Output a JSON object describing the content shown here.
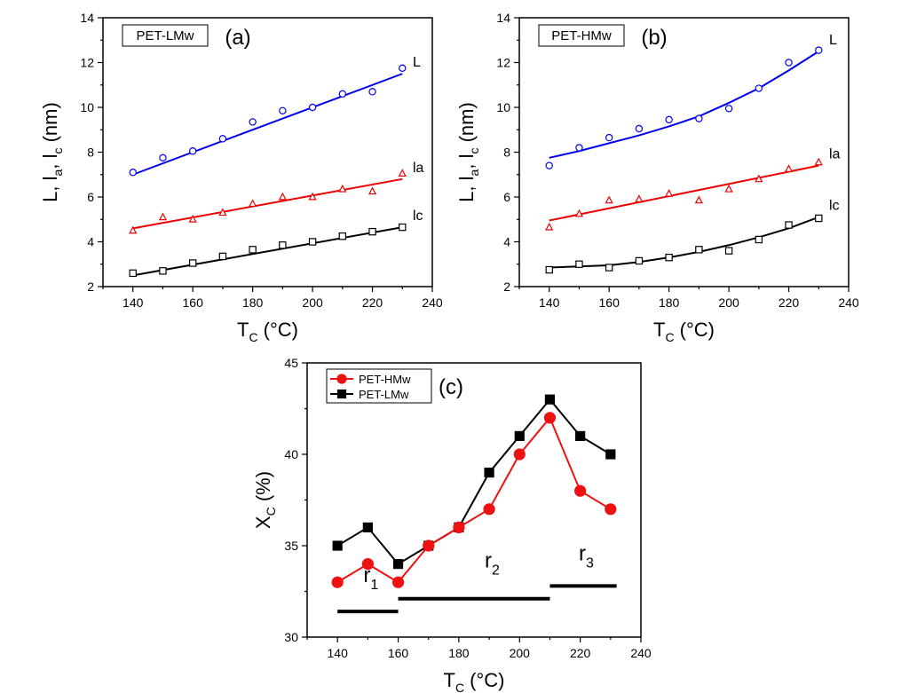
{
  "chart_data": [
    {
      "id": "a",
      "type": "scatter",
      "panel_label": "(a)",
      "sample_tag": "PET-LMw",
      "xlabel_main": "T",
      "xlabel_sub": "C",
      "xlabel_unit": " (°C)",
      "ylabel": "L, l",
      "ylabel_sub1": "a",
      "ylabel_mid": ", l",
      "ylabel_sub2": "c",
      "ylabel_unit": " (nm)",
      "xlim": [
        130,
        240
      ],
      "ylim": [
        2,
        14
      ],
      "xticks": [
        140,
        160,
        180,
        200,
        220,
        240
      ],
      "yticks": [
        2,
        4,
        6,
        8,
        10,
        12,
        14
      ],
      "series": [
        {
          "name": "L",
          "marker": "circle",
          "color": "#0000ee",
          "x": [
            140,
            150,
            160,
            170,
            180,
            190,
            200,
            210,
            220,
            230
          ],
          "y": [
            7.1,
            7.75,
            8.05,
            8.6,
            9.35,
            9.85,
            10.0,
            10.6,
            10.7,
            11.75
          ],
          "fit": [
            [
              140,
              7.0
            ],
            [
              230,
              11.5
            ]
          ]
        },
        {
          "name": "la",
          "marker": "triangle",
          "color": "#ee0000",
          "x": [
            140,
            150,
            160,
            170,
            180,
            190,
            200,
            210,
            220,
            230
          ],
          "y": [
            4.5,
            5.1,
            5.0,
            5.3,
            5.7,
            6.0,
            6.0,
            6.35,
            6.25,
            7.05
          ],
          "fit": [
            [
              140,
              4.6
            ],
            [
              230,
              6.8
            ]
          ]
        },
        {
          "name": "lc",
          "marker": "square",
          "color": "#000000",
          "x": [
            140,
            150,
            160,
            170,
            180,
            190,
            200,
            210,
            220,
            230
          ],
          "y": [
            2.6,
            2.7,
            3.05,
            3.35,
            3.65,
            3.85,
            4.0,
            4.25,
            4.45,
            4.65
          ],
          "fit": [
            [
              140,
              2.5
            ],
            [
              230,
              4.65
            ]
          ]
        }
      ]
    },
    {
      "id": "b",
      "type": "scatter",
      "panel_label": "(b)",
      "sample_tag": "PET-HMw",
      "xlabel_main": "T",
      "xlabel_sub": "C",
      "xlabel_unit": " (°C)",
      "ylabel": "L, l",
      "ylabel_sub1": "a",
      "ylabel_mid": ", l",
      "ylabel_sub2": "c",
      "ylabel_unit": " (nm)",
      "xlim": [
        130,
        240
      ],
      "ylim": [
        2,
        14
      ],
      "xticks": [
        140,
        160,
        180,
        200,
        220,
        240
      ],
      "yticks": [
        2,
        4,
        6,
        8,
        10,
        12,
        14
      ],
      "series": [
        {
          "name": "L",
          "marker": "circle",
          "color": "#0000ee",
          "x": [
            140,
            150,
            160,
            170,
            180,
            190,
            200,
            210,
            220,
            230
          ],
          "y": [
            7.4,
            8.2,
            8.65,
            9.05,
            9.45,
            9.5,
            9.95,
            10.85,
            12.0,
            12.55
          ],
          "fit": [
            [
              140,
              7.75
            ],
            [
              150,
              8.05
            ],
            [
              160,
              8.4
            ],
            [
              170,
              8.75
            ],
            [
              180,
              9.15
            ],
            [
              190,
              9.6
            ],
            [
              200,
              10.2
            ],
            [
              210,
              10.85
            ],
            [
              220,
              11.65
            ],
            [
              230,
              12.5
            ]
          ]
        },
        {
          "name": "la",
          "marker": "triangle",
          "color": "#ee0000",
          "x": [
            140,
            150,
            160,
            170,
            180,
            190,
            200,
            210,
            220,
            230
          ],
          "y": [
            4.65,
            5.25,
            5.85,
            5.9,
            6.15,
            5.85,
            6.35,
            6.8,
            7.25,
            7.55
          ],
          "fit": [
            [
              140,
              4.95
            ],
            [
              230,
              7.4
            ]
          ]
        },
        {
          "name": "lc",
          "marker": "square",
          "color": "#000000",
          "x": [
            140,
            150,
            160,
            170,
            180,
            190,
            200,
            210,
            220,
            230
          ],
          "y": [
            2.75,
            3.0,
            2.85,
            3.15,
            3.3,
            3.65,
            3.6,
            4.1,
            4.75,
            5.05
          ],
          "fit": [
            [
              140,
              2.85
            ],
            [
              150,
              2.9
            ],
            [
              160,
              2.95
            ],
            [
              170,
              3.1
            ],
            [
              180,
              3.3
            ],
            [
              190,
              3.55
            ],
            [
              200,
              3.85
            ],
            [
              210,
              4.2
            ],
            [
              220,
              4.6
            ],
            [
              230,
              5.1
            ]
          ]
        }
      ]
    },
    {
      "id": "c",
      "type": "line",
      "panel_label": "(c)",
      "xlabel_main": "T",
      "xlabel_sub": "C",
      "xlabel_unit": " (°C)",
      "ylabel_main": "X",
      "ylabel_sub": "C",
      "ylabel_unit": " (%)",
      "xlim": [
        130,
        240
      ],
      "ylim": [
        30,
        45
      ],
      "xticks": [
        140,
        160,
        180,
        200,
        220,
        240
      ],
      "yticks": [
        30,
        35,
        40,
        45
      ],
      "legend_position": "top-left",
      "series": [
        {
          "name": "PET-HMw",
          "marker": "circle",
          "color": "#ee1111",
          "x": [
            140,
            150,
            160,
            170,
            180,
            190,
            200,
            210,
            220,
            230
          ],
          "y": [
            33,
            34,
            33,
            35,
            36,
            37,
            40,
            42,
            38,
            37
          ]
        },
        {
          "name": "PET-LMw",
          "marker": "square",
          "color": "#000000",
          "x": [
            140,
            150,
            160,
            170,
            180,
            190,
            200,
            210,
            220,
            230
          ],
          "y": [
            35,
            36,
            34,
            35,
            36,
            39,
            41,
            43,
            41,
            40
          ]
        }
      ],
      "regions": [
        {
          "name": "r",
          "sub": "1",
          "x": [
            140,
            160
          ],
          "y": 31.4,
          "label_x": 151,
          "label_y": 33.0
        },
        {
          "name": "r",
          "sub": "2",
          "x": [
            160,
            210
          ],
          "y": 32.1,
          "label_x": 191,
          "label_y": 33.8
        },
        {
          "name": "r",
          "sub": "3",
          "x": [
            210,
            232
          ],
          "y": 32.8,
          "label_x": 222,
          "label_y": 34.2
        }
      ]
    }
  ]
}
